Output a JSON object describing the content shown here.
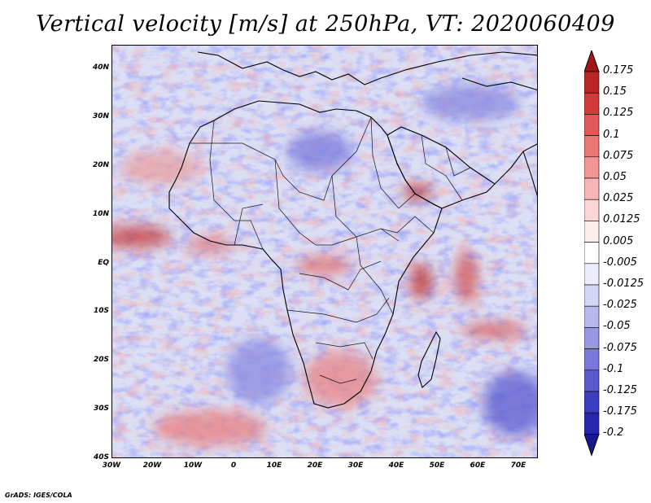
{
  "title": "Vertical velocity [m/s] at 250hPa, VT: 2020060409",
  "map": {
    "lon_range": [
      -30,
      75
    ],
    "lat_range": [
      -40,
      45
    ],
    "y_ticks": [
      "40N",
      "30N",
      "20N",
      "10N",
      "EQ",
      "10S",
      "20S",
      "30S",
      "40S"
    ],
    "x_ticks": [
      "30W",
      "20W",
      "10W",
      "0",
      "10E",
      "20E",
      "30E",
      "40E",
      "50E",
      "60E",
      "70E"
    ]
  },
  "colorbar": {
    "levels": [
      "0.175",
      "0.15",
      "0.125",
      "0.1",
      "0.075",
      "0.05",
      "0.025",
      "0.0125",
      "0.005",
      "-0.005",
      "-0.0125",
      "-0.025",
      "-0.05",
      "-0.075",
      "-0.1",
      "-0.125",
      "-0.175",
      "-0.2"
    ],
    "colors": [
      "#a01818",
      "#bb2525",
      "#d43a3a",
      "#e25757",
      "#ec7575",
      "#f39595",
      "#f8b6b6",
      "#fbd6d6",
      "#fdeeee",
      "#ffffff",
      "#ececfb",
      "#d5d5f6",
      "#b8b8ef",
      "#9797e6",
      "#7878dc",
      "#5a5ad0",
      "#3d3dc0",
      "#2727ad",
      "#171790"
    ]
  },
  "credit": "GrADS: IGES/COLA"
}
